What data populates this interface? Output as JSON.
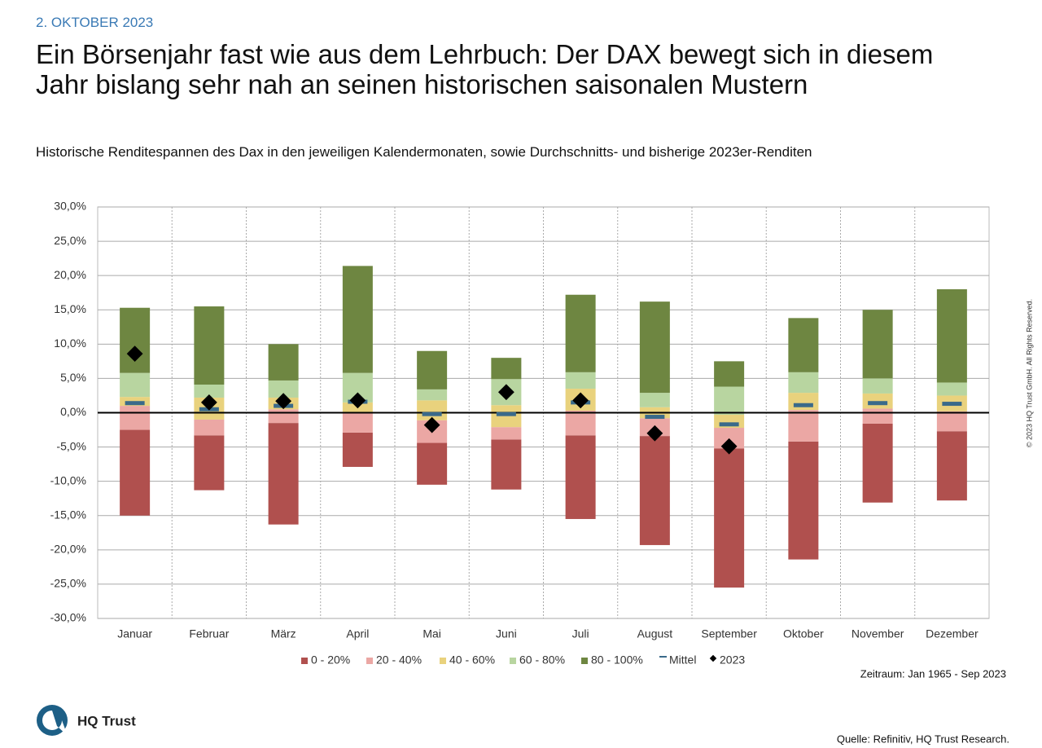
{
  "header": {
    "date": "2. OKTOBER 2023",
    "title": "Ein Börsenjahr fast wie aus dem Lehrbuch: Der DAX bewegt sich in diesem Jahr bislang sehr nah an seinen historischen saisonalen Mustern"
  },
  "chart_data": {
    "type": "range-bar",
    "subtitle": "Historische Renditespannen des Dax in den jeweiligen Kalendermonaten, sowie Durchschnitts- und bisherige 2023er-Renditen",
    "categories": [
      "Januar",
      "Februar",
      "März",
      "April",
      "Mai",
      "Juni",
      "Juli",
      "August",
      "September",
      "Oktober",
      "November",
      "Dezember"
    ],
    "base": [
      -15.0,
      -11.3,
      -16.3,
      -7.9,
      -10.5,
      -11.2,
      -15.5,
      -19.3,
      -25.5,
      -21.4,
      -13.1,
      -12.8
    ],
    "series": [
      {
        "name": "0 - 20%",
        "color": "#b0504e",
        "values": [
          -2.5,
          -3.3,
          -1.5,
          -2.9,
          -4.4,
          -3.9,
          -3.3,
          -3.4,
          -5.2,
          -4.2,
          -1.6,
          -2.7
        ]
      },
      {
        "name": "20 - 40%",
        "color": "#eba7a4",
        "values": [
          1.0,
          -1.0,
          0.5,
          0.0,
          -1.1,
          -2.1,
          0.3,
          -0.8,
          -2.2,
          0.4,
          0.6,
          0.2
        ]
      },
      {
        "name": "40 - 60%",
        "color": "#e9d27d",
        "values": [
          2.3,
          2.2,
          2.2,
          1.5,
          1.8,
          1.1,
          3.5,
          0.8,
          -0.3,
          2.9,
          2.8,
          2.5
        ]
      },
      {
        "name": "60 - 80%",
        "color": "#b8d5a0",
        "values": [
          5.8,
          4.1,
          4.7,
          5.8,
          3.4,
          4.9,
          5.9,
          2.9,
          3.8,
          5.9,
          5.0,
          4.4
        ]
      },
      {
        "name": "80 - 100%",
        "color": "#6e8641",
        "values": [
          15.3,
          15.5,
          10.0,
          21.4,
          9.0,
          8.0,
          17.2,
          16.2,
          7.5,
          13.8,
          15.0,
          18.0
        ]
      }
    ],
    "markers": [
      {
        "name": "Mittel",
        "color": "#3a6a8a",
        "values": [
          1.4,
          0.5,
          1.0,
          1.6,
          -0.2,
          -0.2,
          1.5,
          -0.6,
          -1.7,
          1.1,
          1.4,
          1.3
        ]
      },
      {
        "name": "2023",
        "color": "#000000",
        "values": [
          8.6,
          1.5,
          1.7,
          1.8,
          -1.8,
          3.0,
          1.8,
          -3.0,
          -4.9,
          null,
          null,
          null
        ]
      }
    ],
    "ylim": [
      -30,
      30
    ],
    "yticks": [
      {
        "value": -30,
        "label": "-30,0%"
      },
      {
        "value": -25,
        "label": "-25,0%"
      },
      {
        "value": -20,
        "label": "-20,0%"
      },
      {
        "value": -15,
        "label": "-15,0%"
      },
      {
        "value": -10,
        "label": "-10,0%"
      },
      {
        "value": -5,
        "label": "-5,0%"
      },
      {
        "value": 0,
        "label": "0,0%"
      },
      {
        "value": 5,
        "label": "5,0%"
      },
      {
        "value": 10,
        "label": "10,0%"
      },
      {
        "value": 15,
        "label": "15,0%"
      },
      {
        "value": 20,
        "label": "20,0%"
      },
      {
        "value": 25,
        "label": "25,0%"
      },
      {
        "value": 30,
        "label": "30,0%"
      }
    ],
    "grid": true,
    "note": "Zeitraum: Jan 1965 - Sep 2023"
  },
  "footer": {
    "logo": "HQ Trust",
    "source": "Quelle: Refinitiv, HQ Trust Research.",
    "copyright": "© 2023 HQ Trust GmbH. All Rights Reserved."
  }
}
